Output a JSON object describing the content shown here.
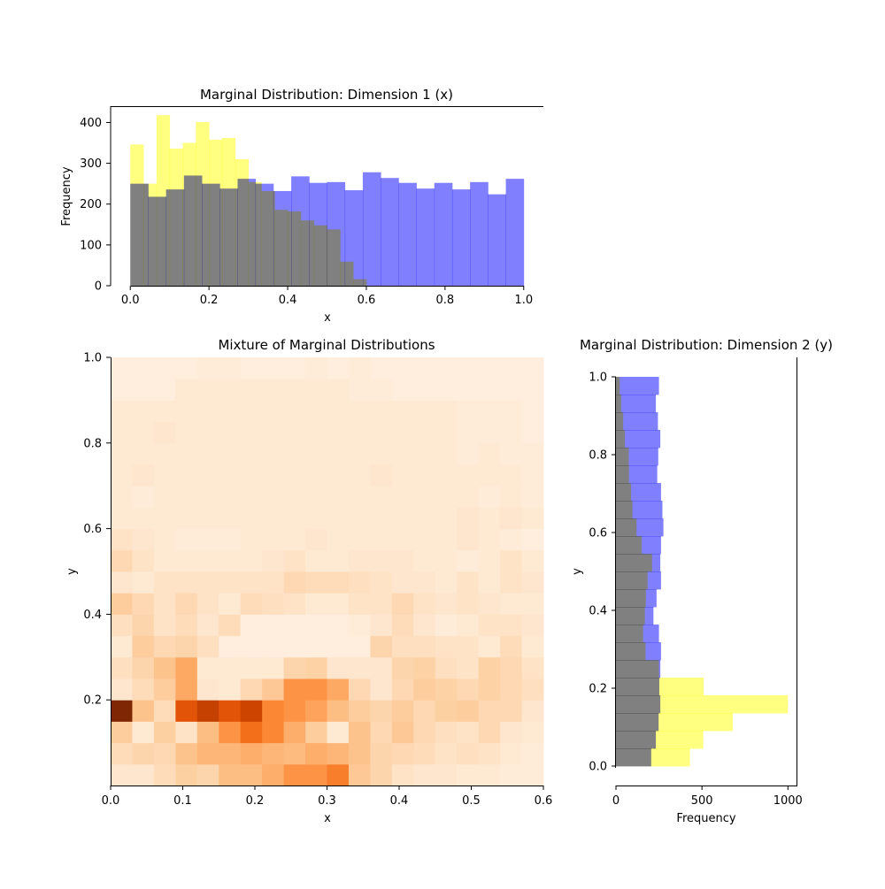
{
  "chart_data": [
    {
      "id": "top",
      "type": "histogram",
      "orientation": "vertical",
      "title": "Marginal Distribution: Dimension 1 (x)",
      "xlabel": "x",
      "ylabel": "Frequency",
      "xlim": [
        -0.05,
        1.05
      ],
      "ylim": [
        0,
        440
      ],
      "xticks": [
        0.0,
        0.2,
        0.4,
        0.6,
        0.8,
        1.0
      ],
      "xtick_labels": [
        "0.0",
        "0.2",
        "0.4",
        "0.6",
        "0.8",
        "1.0"
      ],
      "yticks": [
        0,
        100,
        200,
        300,
        400
      ],
      "ytick_labels": [
        "0",
        "100",
        "200",
        "300",
        "400"
      ],
      "series": [
        {
          "name": "blue",
          "color": "#8080ff",
          "range": [
            0,
            1
          ],
          "values": [
            250,
            218,
            236,
            270,
            250,
            238,
            262,
            250,
            232,
            268,
            252,
            254,
            234,
            278,
            264,
            252,
            238,
            252,
            236,
            254,
            224,
            262
          ]
        },
        {
          "name": "yellow",
          "color": "#ffff80",
          "range": [
            0,
            0.6
          ],
          "values": [
            346,
            250,
            418,
            336,
            350,
            401,
            358,
            362,
            310,
            254,
            232,
            186,
            182,
            160,
            148,
            138,
            59,
            16
          ]
        }
      ]
    },
    {
      "id": "right",
      "type": "histogram",
      "orientation": "horizontal",
      "title": "Marginal Distribution: Dimension 2 (y)",
      "xlabel": "Frequency",
      "ylabel": "y",
      "xlim": [
        0,
        1050
      ],
      "ylim": [
        -0.05,
        1.05
      ],
      "xticks": [
        0,
        500,
        1000
      ],
      "xtick_labels": [
        "0",
        "500",
        "1000"
      ],
      "yticks": [
        0.0,
        0.2,
        0.4,
        0.6,
        0.8,
        1.0
      ],
      "ytick_labels": [
        "0.0",
        "0.2",
        "0.4",
        "0.6",
        "0.8",
        "1.0"
      ],
      "series": [
        {
          "name": "blue",
          "color": "#8080ff",
          "range": [
            0,
            1
          ],
          "values": [
            205,
            232,
            248,
            258,
            252,
            258,
            262,
            250,
            218,
            236,
            262,
            258,
            262,
            276,
            270,
            262,
            240,
            246,
            258,
            244,
            232,
            250
          ]
        },
        {
          "name": "yellow",
          "color": "#ffff80",
          "range": [
            0,
            1
          ],
          "values": [
            430,
            508,
            680,
            1000,
            510,
            250,
            172,
            158,
            168,
            174,
            184,
            210,
            150,
            120,
            96,
            88,
            76,
            74,
            52,
            42,
            30,
            22
          ]
        }
      ]
    },
    {
      "id": "main",
      "type": "heatmap",
      "title": "Mixture of Marginal Distributions",
      "xlabel": "x",
      "ylabel": "y",
      "xlim": [
        0,
        0.6
      ],
      "ylim": [
        0,
        1
      ],
      "xticks": [
        0.0,
        0.1,
        0.2,
        0.3,
        0.4,
        0.5,
        0.6
      ],
      "xtick_labels": [
        "0.0",
        "0.1",
        "0.2",
        "0.3",
        "0.4",
        "0.5",
        "0.6"
      ],
      "yticks": [
        0.2,
        0.4,
        0.6,
        0.8,
        1.0
      ],
      "ytick_labels": [
        "0.2",
        "0.4",
        "0.6",
        "0.8",
        "1.0"
      ],
      "colormap": "Oranges",
      "zmax": 100,
      "grid_rows_bottom_to_top": [
        [
          12,
          12,
          18,
          25,
          22,
          32,
          32,
          38,
          48,
          48,
          55,
          28,
          22,
          14,
          12,
          12,
          10,
          10,
          8,
          8
        ],
        [
          18,
          22,
          20,
          30,
          35,
          35,
          38,
          35,
          33,
          38,
          35,
          30,
          22,
          20,
          18,
          14,
          16,
          14,
          10,
          8
        ],
        [
          26,
          10,
          25,
          14,
          32,
          48,
          60,
          52,
          38,
          26,
          10,
          30,
          20,
          28,
          20,
          16,
          14,
          20,
          12,
          10
        ],
        [
          100,
          30,
          18,
          70,
          80,
          70,
          78,
          52,
          48,
          42,
          32,
          26,
          22,
          26,
          20,
          25,
          26,
          20,
          20,
          12
        ],
        [
          12,
          18,
          26,
          40,
          12,
          10,
          20,
          28,
          48,
          48,
          40,
          20,
          12,
          20,
          26,
          24,
          20,
          24,
          20,
          16
        ],
        [
          16,
          22,
          30,
          40,
          10,
          10,
          10,
          10,
          22,
          24,
          12,
          12,
          12,
          22,
          24,
          16,
          14,
          24,
          20,
          14
        ],
        [
          10,
          26,
          20,
          22,
          16,
          6,
          6,
          6,
          6,
          6,
          6,
          6,
          22,
          16,
          16,
          14,
          14,
          10,
          18,
          10
        ],
        [
          16,
          22,
          14,
          18,
          12,
          18,
          6,
          6,
          6,
          6,
          6,
          8,
          12,
          18,
          12,
          8,
          10,
          14,
          14,
          12
        ],
        [
          26,
          20,
          14,
          20,
          14,
          10,
          18,
          16,
          14,
          10,
          10,
          14,
          14,
          20,
          14,
          12,
          14,
          12,
          10,
          10
        ],
        [
          12,
          10,
          14,
          14,
          14,
          14,
          14,
          14,
          20,
          18,
          18,
          16,
          14,
          12,
          12,
          10,
          14,
          10,
          14,
          12
        ],
        [
          20,
          14,
          10,
          10,
          10,
          10,
          10,
          12,
          14,
          10,
          10,
          12,
          12,
          12,
          10,
          10,
          8,
          10,
          14,
          10
        ],
        [
          14,
          12,
          10,
          8,
          8,
          8,
          10,
          10,
          10,
          12,
          10,
          10,
          10,
          10,
          10,
          10,
          12,
          10,
          8,
          6
        ],
        [
          10,
          10,
          10,
          10,
          10,
          10,
          10,
          10,
          10,
          10,
          10,
          10,
          10,
          10,
          10,
          10,
          12,
          10,
          12,
          10
        ],
        [
          10,
          8,
          10,
          10,
          10,
          10,
          10,
          10,
          10,
          10,
          10,
          10,
          10,
          10,
          10,
          10,
          10,
          8,
          10,
          8
        ],
        [
          10,
          12,
          10,
          10,
          10,
          10,
          10,
          10,
          10,
          10,
          10,
          10,
          12,
          10,
          10,
          10,
          10,
          10,
          10,
          8
        ],
        [
          10,
          10,
          10,
          10,
          10,
          10,
          10,
          10,
          10,
          10,
          10,
          10,
          10,
          10,
          10,
          10,
          8,
          10,
          8,
          8
        ],
        [
          10,
          10,
          12,
          10,
          10,
          10,
          10,
          10,
          10,
          10,
          10,
          10,
          10,
          10,
          10,
          10,
          8,
          8,
          8,
          6
        ],
        [
          10,
          10,
          10,
          10,
          10,
          10,
          10,
          10,
          10,
          10,
          10,
          10,
          10,
          10,
          10,
          10,
          8,
          8,
          8,
          6
        ],
        [
          6,
          6,
          6,
          10,
          10,
          10,
          10,
          10,
          10,
          10,
          10,
          8,
          8,
          6,
          6,
          6,
          6,
          6,
          6,
          6
        ],
        [
          6,
          6,
          6,
          6,
          8,
          8,
          6,
          6,
          6,
          8,
          6,
          8,
          6,
          6,
          6,
          6,
          6,
          6,
          6,
          6
        ]
      ]
    }
  ]
}
